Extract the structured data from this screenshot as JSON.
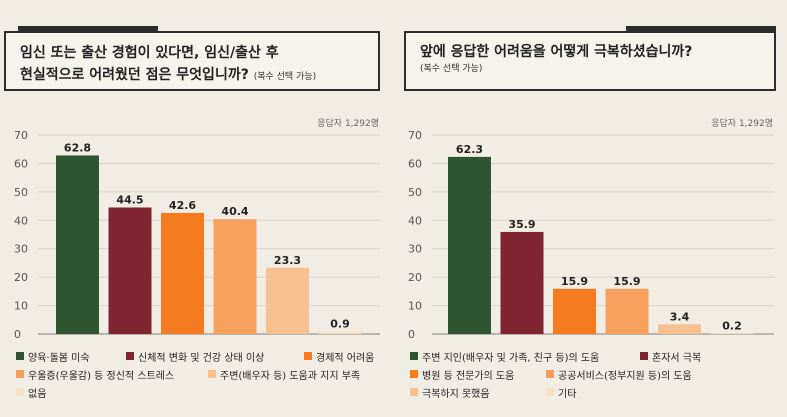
{
  "left": {
    "title_line1": "임신 또는 출산 경험이 있다면, 임신/출산 후",
    "title_line2": "현실적으로 어려웠던 점은 무엇입니까?",
    "note": "(복수 선택 가능)",
    "respondents": "응답자 1,292명"
  },
  "right": {
    "title": "앞에 응답한 어려움을 어떻게 극복하셨습니까?",
    "note": "(복수 선택 가능)",
    "respondents": "응답자 1,292명"
  },
  "chart_data": [
    {
      "type": "bar",
      "categories": [
        "양육·돌봄 미숙",
        "신체적 변화 및 건강 상태 이상",
        "경제적 어려움",
        "우울증(우울감) 등 정신적 스트레스",
        "주변(배우자 등) 도움과 지지 부족",
        "없음"
      ],
      "values": [
        62.8,
        44.5,
        42.6,
        40.4,
        23.3,
        0.9
      ],
      "colors": [
        "#2f5530",
        "#7f2430",
        "#f47b20",
        "#f6a05e",
        "#f8c08e",
        "#f6dfc4"
      ],
      "yticks": [
        0,
        10,
        20,
        30,
        40,
        50,
        60,
        70
      ],
      "ylim": [
        0,
        70
      ],
      "grid": true,
      "legend_position": "bottom"
    },
    {
      "type": "bar",
      "categories": [
        "주변 지인(배우자 및 가족, 친구 등)의 도움",
        "혼자서 극복",
        "병원 등 전문가의 도움",
        "공공서비스(정부지원 등)의 도움",
        "극복하지 못했음",
        "기타"
      ],
      "values": [
        62.3,
        35.9,
        15.9,
        15.9,
        3.4,
        0.2
      ],
      "colors": [
        "#2f5530",
        "#7f2430",
        "#f47b20",
        "#f6a05e",
        "#f8c08e",
        "#f6dfc4"
      ],
      "yticks": [
        0,
        10,
        20,
        30,
        40,
        50,
        60,
        70
      ],
      "ylim": [
        0,
        70
      ],
      "grid": true,
      "legend_position": "bottom"
    }
  ]
}
